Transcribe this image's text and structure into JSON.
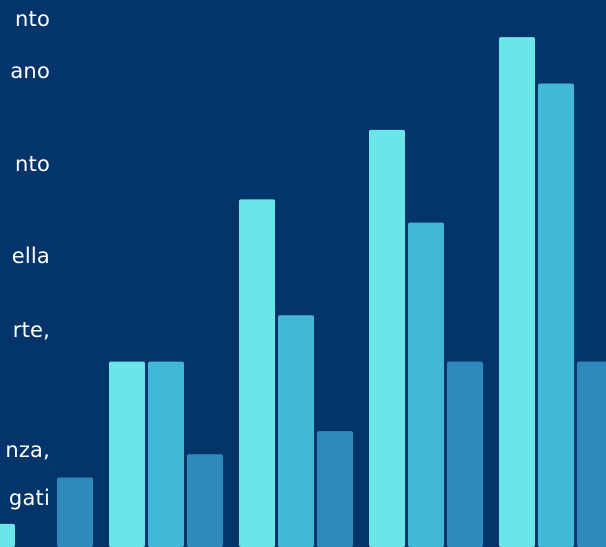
{
  "colors": {
    "background": "#04356a",
    "text": "#ffffff",
    "series_1": "#6ae6e8",
    "series_2": "#41b8d8",
    "series_3": "#2d8aba"
  },
  "text_fragments": [
    "nto",
    "ano",
    "nto",
    "ella",
    "rte,",
    "nza,",
    "gati"
  ],
  "chart_data": {
    "type": "bar",
    "categories": [
      "",
      "",
      "",
      "",
      ""
    ],
    "series": [
      {
        "values": [
          2,
          16,
          30,
          36,
          44
        ]
      },
      {
        "values": [
          -1,
          16,
          20,
          28,
          40
        ]
      },
      {
        "values": [
          6,
          8,
          10,
          16,
          16
        ]
      }
    ],
    "ylim": [
      0,
      46
    ],
    "grid": false,
    "legend": "none"
  }
}
